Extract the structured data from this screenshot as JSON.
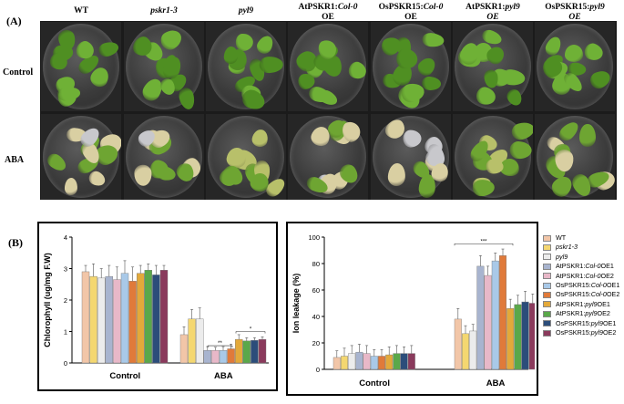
{
  "panel_a": {
    "label": "(A)",
    "row_labels": [
      "Control",
      "ABA"
    ],
    "columns": [
      {
        "line1": "WT",
        "line1_italic": false,
        "line2": "",
        "line2_italic": false
      },
      {
        "line1": "pskr1-3",
        "line1_italic": true,
        "line2": "",
        "line2_italic": false
      },
      {
        "line1": "pyl9",
        "line1_italic": true,
        "line2": "",
        "line2_italic": false
      },
      {
        "line1": "AtPSKR1:",
        "line1_italic": false,
        "line1b": "Col-0",
        "line2": "OE",
        "line2_italic": false
      },
      {
        "line1": "OsPSKR15:",
        "line1_italic": false,
        "line1b": "Col-0",
        "line2": "OE",
        "line2_italic": false
      },
      {
        "line1": "AtPSKR1:",
        "line1_italic": false,
        "line1b": "pyl9",
        "line2": "OE",
        "line2_italic": true
      },
      {
        "line1": "OsPSKR15:",
        "line1_italic": false,
        "line1b": "pyl9",
        "line2": "OE",
        "line2_italic": true
      }
    ]
  },
  "panel_b": {
    "label": "(B)"
  },
  "legend": [
    {
      "a": "WT",
      "b": "",
      "c": "",
      "color": "#f2c6a8"
    },
    {
      "a": "",
      "b": "pskr1-3",
      "c": "",
      "color": "#f4d770"
    },
    {
      "a": "",
      "b": "pyl9",
      "c": "",
      "color": "#ececec"
    },
    {
      "a": "AtPSKR1:",
      "b": "Col-0",
      "c": " OE1",
      "color": "#a8b4cf"
    },
    {
      "a": "AtPSKR1:",
      "b": "Col-0",
      "c": " OE2",
      "color": "#e8b8c8"
    },
    {
      "a": "OsPSKR15:",
      "b": "Col-0",
      "c": " OE1",
      "color": "#a9c9e8"
    },
    {
      "a": "OsPSKR15:",
      "b": "Col-0",
      "c": " OE2",
      "color": "#e07a3a"
    },
    {
      "a": "AtPSKR1:",
      "b": "pyl9",
      "c": " OE1",
      "color": "#e3a93a"
    },
    {
      "a": "AtPSKR1:",
      "b": "pyl9",
      "c": " OE2",
      "color": "#5aa84a"
    },
    {
      "a": "OsPSKR15:",
      "b": "pyl9",
      "c": " OE1",
      "color": "#2c4d7a"
    },
    {
      "a": "OsPSKR15:",
      "b": "pyl9",
      "c": " OE2",
      "color": "#8a3a5c"
    }
  ],
  "chart_data": [
    {
      "type": "bar",
      "ylabel": "Chlorophyll (ug/mg F.W)",
      "xlabel": "",
      "categories": [
        "Control",
        "ABA"
      ],
      "ylim": [
        0,
        4
      ],
      "yticks": [
        "0",
        "1",
        "2",
        "3",
        "4"
      ],
      "series": [
        {
          "values": [
            2.9,
            0.9
          ],
          "errors": [
            0.2,
            0.25
          ]
        },
        {
          "values": [
            2.75,
            1.4
          ],
          "errors": [
            0.4,
            0.3
          ]
        },
        {
          "values": [
            2.7,
            1.4
          ],
          "errors": [
            0.3,
            0.35
          ]
        },
        {
          "values": [
            2.75,
            0.4
          ],
          "errors": [
            0.35,
            0.12
          ]
        },
        {
          "values": [
            2.65,
            0.4
          ],
          "errors": [
            0.4,
            0.1
          ]
        },
        {
          "values": [
            2.85,
            0.4
          ],
          "errors": [
            0.4,
            0.12
          ]
        },
        {
          "values": [
            2.6,
            0.45
          ],
          "errors": [
            0.45,
            0.15
          ]
        },
        {
          "values": [
            2.85,
            0.75
          ],
          "errors": [
            0.25,
            0.15
          ]
        },
        {
          "values": [
            2.95,
            0.7
          ],
          "errors": [
            0.2,
            0.1
          ]
        },
        {
          "values": [
            2.8,
            0.72
          ],
          "errors": [
            0.3,
            0.08
          ]
        },
        {
          "values": [
            2.95,
            0.75
          ],
          "errors": [
            0.15,
            0.08
          ]
        }
      ],
      "annotations": [
        "**",
        "*"
      ]
    },
    {
      "type": "bar",
      "ylabel": "Ion leakage (%)",
      "xlabel": "",
      "categories": [
        "Control",
        "ABA"
      ],
      "ylim": [
        0,
        100
      ],
      "yticks": [
        "0",
        "20",
        "40",
        "60",
        "80",
        "100"
      ],
      "series": [
        {
          "values": [
            9,
            38
          ],
          "errors": [
            5,
            8
          ]
        },
        {
          "values": [
            10,
            27
          ],
          "errors": [
            6,
            6
          ]
        },
        {
          "values": [
            12,
            29
          ],
          "errors": [
            6,
            5
          ]
        },
        {
          "values": [
            13,
            78
          ],
          "errors": [
            6,
            8
          ]
        },
        {
          "values": [
            12,
            71
          ],
          "errors": [
            6,
            7
          ]
        },
        {
          "values": [
            10,
            82
          ],
          "errors": [
            5,
            6
          ]
        },
        {
          "values": [
            10,
            86
          ],
          "errors": [
            5,
            5
          ]
        },
        {
          "values": [
            11,
            46
          ],
          "errors": [
            6,
            7
          ]
        },
        {
          "values": [
            12,
            49
          ],
          "errors": [
            6,
            7
          ]
        },
        {
          "values": [
            12,
            51
          ],
          "errors": [
            5,
            8
          ]
        },
        {
          "values": [
            12,
            50
          ],
          "errors": [
            6,
            7
          ]
        }
      ],
      "annotations": [
        "***"
      ]
    }
  ]
}
